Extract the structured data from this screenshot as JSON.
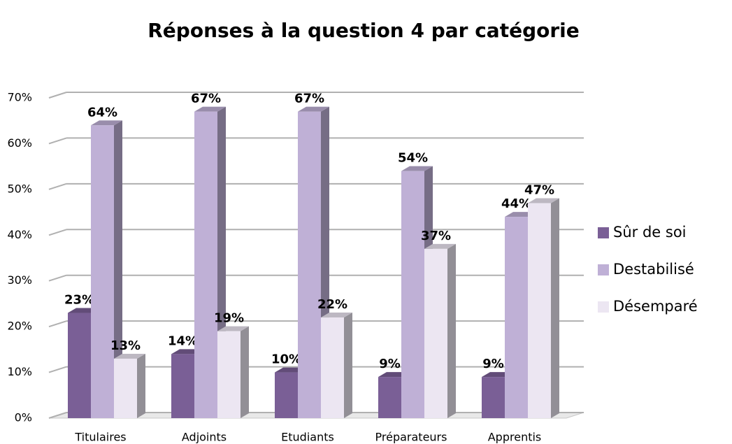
{
  "chart_data": {
    "type": "bar3d",
    "title": "Réponses à la question 4 par catégorie",
    "categories": [
      "Titulaires",
      "Adjoints",
      "Etudiants",
      "Préparateurs",
      "Apprentis"
    ],
    "series": [
      {
        "name": "Sûr de soi",
        "color": "#7a5f96",
        "values": [
          23,
          14,
          10,
          9,
          9
        ],
        "value_labels": [
          "23%",
          "14%",
          "10%",
          "9%",
          "9%"
        ]
      },
      {
        "name": "Destabilisé",
        "color": "#bfb0d6",
        "values": [
          64,
          67,
          67,
          54,
          44
        ],
        "value_labels": [
          "64%",
          "67%",
          "67%",
          "54%",
          "44%"
        ]
      },
      {
        "name": "Désemparé",
        "color": "#ece6f2",
        "values": [
          13,
          19,
          22,
          37,
          47
        ],
        "value_labels": [
          "13%",
          "19%",
          "22%",
          "37%",
          "47%"
        ]
      }
    ],
    "ylim": [
      0,
      70
    ],
    "yticks": [
      {
        "value": 0,
        "label": "0%"
      },
      {
        "value": 10,
        "label": "10%"
      },
      {
        "value": 20,
        "label": "20%"
      },
      {
        "value": 30,
        "label": "30%"
      },
      {
        "value": 40,
        "label": "40%"
      },
      {
        "value": 50,
        "label": "50%"
      },
      {
        "value": 60,
        "label": "60%"
      },
      {
        "value": 70,
        "label": "70%"
      }
    ],
    "grid": true,
    "legend": "right"
  }
}
